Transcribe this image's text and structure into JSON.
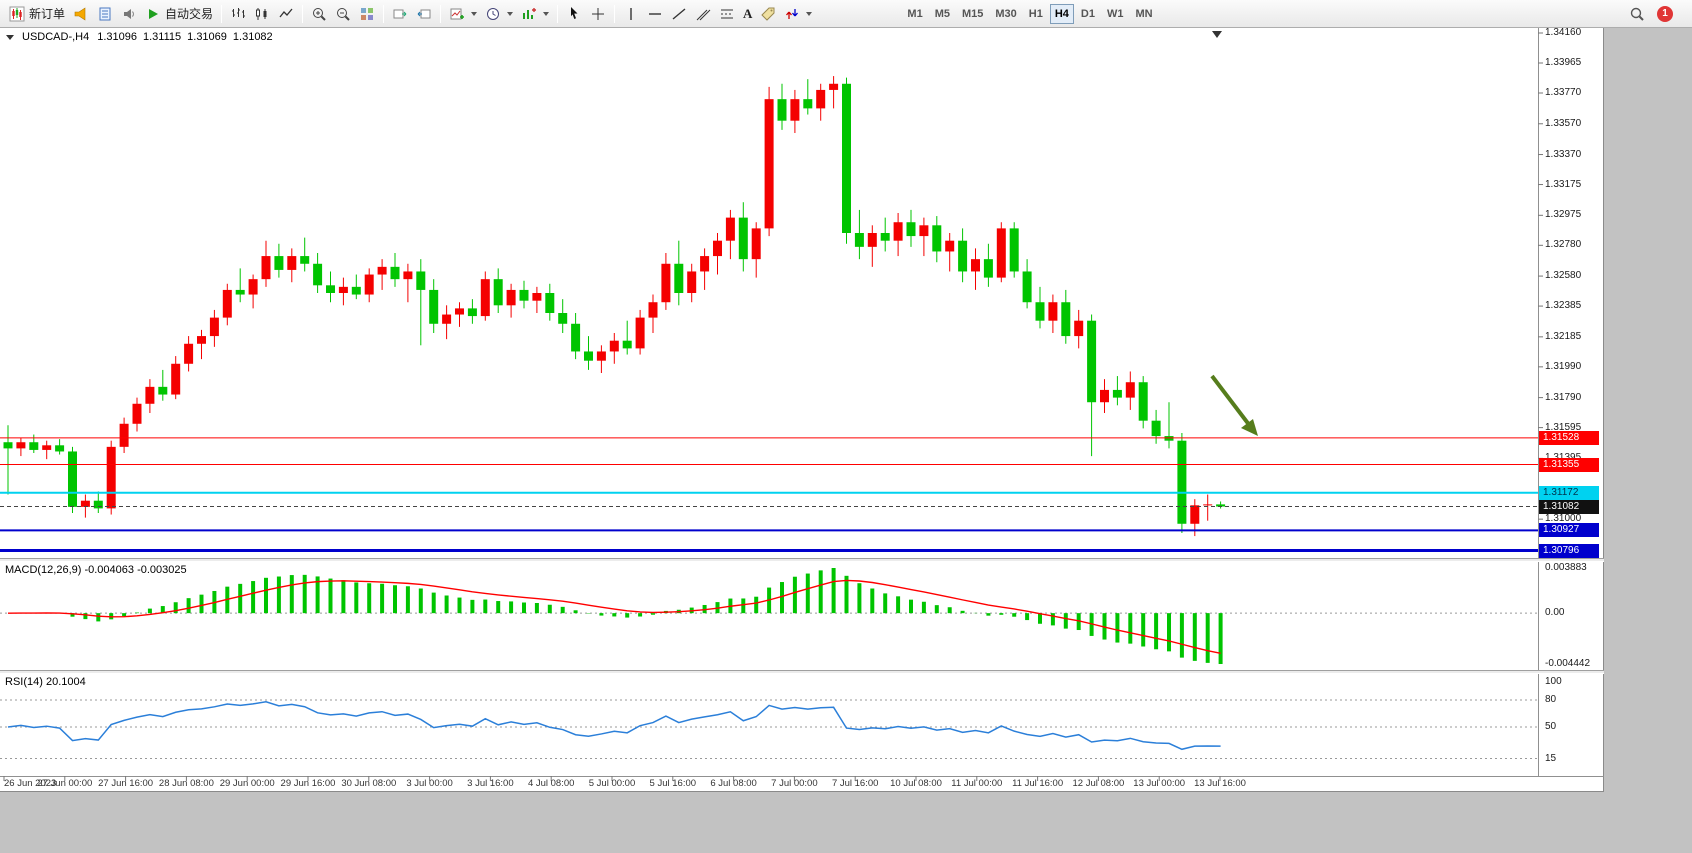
{
  "toolbar": {
    "new_order_label": "新订单",
    "auto_trading_label": "自动交易",
    "text_tool_label": "A",
    "timeframes": [
      "M1",
      "M5",
      "M15",
      "M30",
      "H1",
      "H4",
      "D1",
      "W1",
      "MN"
    ],
    "active_timeframe": "H4",
    "notification_count": "1"
  },
  "chart": {
    "symbol_period": "USDCAD-,H4",
    "ohlc": {
      "open": "1.31096",
      "high": "1.31115",
      "low": "1.31069",
      "close": "1.31082"
    },
    "price_scale": [
      "1.34160",
      "1.33965",
      "1.33770",
      "1.33570",
      "1.33370",
      "1.33175",
      "1.32975",
      "1.32780",
      "1.32580",
      "1.32385",
      "1.32185",
      "1.31990",
      "1.31790",
      "1.31595",
      "1.31395",
      "1.31000"
    ],
    "price_lines": [
      {
        "price": 1.31528,
        "label": "1.31528",
        "color": "#ff0000",
        "width": 1
      },
      {
        "price": 1.31355,
        "label": "1.31355",
        "color": "#ff0000",
        "width": 1
      },
      {
        "price": 1.31172,
        "label": "1.31172",
        "color": "#00d2f0",
        "width": 2,
        "text_color": "#00334d"
      },
      {
        "price": 1.30927,
        "label": "1.30927",
        "color": "#0000cd",
        "width": 2
      },
      {
        "price": 1.30796,
        "label": "1.30796",
        "color": "#0000cd",
        "width": 3
      }
    ],
    "current_price": {
      "value": 1.31082,
      "label": "1.31082",
      "bg": "#111111"
    },
    "time_axis": [
      "26 Jun 2023",
      "27 Jun 00:00",
      "27 Jun 16:00",
      "28 Jun 08:00",
      "29 Jun 00:00",
      "29 Jun 16:00",
      "30 Jun 08:00",
      "3 Jul 00:00",
      "3 Jul 16:00",
      "4 Jul 08:00",
      "5 Jul 00:00",
      "5 Jul 16:00",
      "6 Jul 08:00",
      "7 Jul 00:00",
      "7 Jul 16:00",
      "10 Jul 08:00",
      "11 Jul 00:00",
      "11 Jul 16:00",
      "12 Jul 08:00",
      "13 Jul 00:00",
      "13 Jul 16:00"
    ]
  },
  "macd": {
    "header": "MACD(12,26,9) -0.004063 -0.003025",
    "scale": [
      "0.003883",
      "0.00",
      "-0.004442"
    ],
    "histogram_color": "#00c400",
    "signal_color": "#ff0000"
  },
  "rsi": {
    "header": "RSI(14) 20.1004",
    "scale": [
      "100",
      "80",
      "50",
      "15"
    ],
    "levels": [
      80,
      50,
      15
    ],
    "line_color": "#2b7fd9"
  },
  "annotation": {
    "type": "arrow-down-right",
    "color": "#567d1c"
  },
  "chart_data": {
    "type": "candlestick",
    "symbol": "USDCAD",
    "period": "H4",
    "up_color": "#f40000",
    "down_color": "#00c400",
    "price_range": [
      1.3076,
      1.3418
    ],
    "indicators": [
      {
        "name": "MACD",
        "params": [
          12,
          26,
          9
        ],
        "values_shown": [
          -0.004063,
          -0.003025
        ]
      },
      {
        "name": "RSI",
        "params": [
          14
        ],
        "value_shown": 20.1004
      }
    ],
    "candles": [
      [
        1.315,
        1.3161,
        1.3116,
        1.3146
      ],
      [
        1.3146,
        1.3153,
        1.3141,
        1.315
      ],
      [
        1.315,
        1.3155,
        1.3143,
        1.3145
      ],
      [
        1.3145,
        1.3151,
        1.3139,
        1.3148
      ],
      [
        1.3148,
        1.3152,
        1.3142,
        1.3144
      ],
      [
        1.3144,
        1.3147,
        1.3104,
        1.3108
      ],
      [
        1.3108,
        1.3116,
        1.3101,
        1.3112
      ],
      [
        1.3112,
        1.3118,
        1.3104,
        1.3107
      ],
      [
        1.3107,
        1.3151,
        1.3103,
        1.3147
      ],
      [
        1.3147,
        1.3166,
        1.3143,
        1.3162
      ],
      [
        1.3162,
        1.3179,
        1.3157,
        1.3175
      ],
      [
        1.3175,
        1.3191,
        1.3169,
        1.3186
      ],
      [
        1.3186,
        1.3197,
        1.3177,
        1.3181
      ],
      [
        1.3181,
        1.3206,
        1.3178,
        1.3201
      ],
      [
        1.3201,
        1.3219,
        1.3196,
        1.3214
      ],
      [
        1.3214,
        1.3223,
        1.3204,
        1.3219
      ],
      [
        1.3219,
        1.3236,
        1.3212,
        1.3231
      ],
      [
        1.3231,
        1.3253,
        1.3226,
        1.3249
      ],
      [
        1.3249,
        1.3263,
        1.3241,
        1.3246
      ],
      [
        1.3246,
        1.3259,
        1.3237,
        1.3256
      ],
      [
        1.3256,
        1.3281,
        1.3251,
        1.3271
      ],
      [
        1.3271,
        1.3279,
        1.3257,
        1.3262
      ],
      [
        1.3262,
        1.3276,
        1.3254,
        1.3271
      ],
      [
        1.3271,
        1.3283,
        1.3261,
        1.3266
      ],
      [
        1.3266,
        1.3273,
        1.3247,
        1.3252
      ],
      [
        1.3252,
        1.3261,
        1.3241,
        1.3247
      ],
      [
        1.3247,
        1.3257,
        1.3239,
        1.3251
      ],
      [
        1.3251,
        1.3259,
        1.3243,
        1.3246
      ],
      [
        1.3246,
        1.3263,
        1.3241,
        1.3259
      ],
      [
        1.3259,
        1.3269,
        1.3249,
        1.3264
      ],
      [
        1.3264,
        1.3273,
        1.3251,
        1.3256
      ],
      [
        1.3256,
        1.3266,
        1.3241,
        1.3261
      ],
      [
        1.3261,
        1.3269,
        1.3213,
        1.3249
      ],
      [
        1.3249,
        1.3256,
        1.3221,
        1.3227
      ],
      [
        1.3227,
        1.3239,
        1.3217,
        1.3233
      ],
      [
        1.3233,
        1.3241,
        1.3225,
        1.3237
      ],
      [
        1.3237,
        1.3243,
        1.3227,
        1.3232
      ],
      [
        1.3232,
        1.3261,
        1.3229,
        1.3256
      ],
      [
        1.3256,
        1.3263,
        1.3234,
        1.3239
      ],
      [
        1.3239,
        1.3253,
        1.3231,
        1.3249
      ],
      [
        1.3249,
        1.3255,
        1.3237,
        1.3242
      ],
      [
        1.3242,
        1.3251,
        1.3234,
        1.3247
      ],
      [
        1.3247,
        1.3253,
        1.3229,
        1.3234
      ],
      [
        1.3234,
        1.3243,
        1.3221,
        1.3227
      ],
      [
        1.3227,
        1.3234,
        1.3204,
        1.3209
      ],
      [
        1.3209,
        1.3219,
        1.3197,
        1.3203
      ],
      [
        1.3203,
        1.3213,
        1.3195,
        1.3209
      ],
      [
        1.3209,
        1.3221,
        1.3201,
        1.3216
      ],
      [
        1.3216,
        1.3229,
        1.3207,
        1.3211
      ],
      [
        1.3211,
        1.3236,
        1.3207,
        1.3231
      ],
      [
        1.3231,
        1.3246,
        1.3221,
        1.3241
      ],
      [
        1.3241,
        1.3273,
        1.3236,
        1.3266
      ],
      [
        1.3266,
        1.3281,
        1.3239,
        1.3247
      ],
      [
        1.3247,
        1.3266,
        1.3241,
        1.3261
      ],
      [
        1.3261,
        1.3276,
        1.3249,
        1.3271
      ],
      [
        1.3271,
        1.3286,
        1.3259,
        1.3281
      ],
      [
        1.3281,
        1.3301,
        1.3269,
        1.3296
      ],
      [
        1.3296,
        1.3306,
        1.3261,
        1.3269
      ],
      [
        1.3269,
        1.3293,
        1.3257,
        1.3289
      ],
      [
        1.3289,
        1.3381,
        1.3284,
        1.3373
      ],
      [
        1.3373,
        1.3383,
        1.3353,
        1.3359
      ],
      [
        1.3359,
        1.3379,
        1.3351,
        1.3373
      ],
      [
        1.3373,
        1.3386,
        1.3363,
        1.3367
      ],
      [
        1.3367,
        1.3383,
        1.3359,
        1.3379
      ],
      [
        1.3379,
        1.3388,
        1.3367,
        1.3383
      ],
      [
        1.3383,
        1.3387,
        1.3279,
        1.3286
      ],
      [
        1.3286,
        1.3301,
        1.3269,
        1.3277
      ],
      [
        1.3277,
        1.3291,
        1.3264,
        1.3286
      ],
      [
        1.3286,
        1.3296,
        1.3274,
        1.3281
      ],
      [
        1.3281,
        1.3299,
        1.3271,
        1.3293
      ],
      [
        1.3293,
        1.3301,
        1.3277,
        1.3284
      ],
      [
        1.3284,
        1.3296,
        1.3271,
        1.3291
      ],
      [
        1.3291,
        1.3297,
        1.3267,
        1.3274
      ],
      [
        1.3274,
        1.3286,
        1.3261,
        1.3281
      ],
      [
        1.3281,
        1.3289,
        1.3254,
        1.3261
      ],
      [
        1.3261,
        1.3276,
        1.3249,
        1.3269
      ],
      [
        1.3269,
        1.3279,
        1.3251,
        1.3257
      ],
      [
        1.3257,
        1.3293,
        1.3254,
        1.3289
      ],
      [
        1.3289,
        1.3293,
        1.3257,
        1.3261
      ],
      [
        1.3261,
        1.3269,
        1.3237,
        1.3241
      ],
      [
        1.3241,
        1.3251,
        1.3224,
        1.3229
      ],
      [
        1.3229,
        1.3246,
        1.3221,
        1.3241
      ],
      [
        1.3241,
        1.3249,
        1.3214,
        1.3219
      ],
      [
        1.3219,
        1.3236,
        1.3211,
        1.3229
      ],
      [
        1.3229,
        1.3233,
        1.3141,
        1.3176
      ],
      [
        1.3176,
        1.3191,
        1.3169,
        1.3184
      ],
      [
        1.3184,
        1.3193,
        1.3174,
        1.3179
      ],
      [
        1.3179,
        1.3196,
        1.3171,
        1.3189
      ],
      [
        1.3189,
        1.3193,
        1.3159,
        1.3164
      ],
      [
        1.3164,
        1.3171,
        1.3149,
        1.3154
      ],
      [
        1.3154,
        1.3176,
        1.3146,
        1.3151
      ],
      [
        1.3151,
        1.3156,
        1.3091,
        1.3097
      ],
      [
        1.3097,
        1.3113,
        1.3089,
        1.3109
      ],
      [
        1.3109,
        1.3116,
        1.3099,
        1.31096
      ],
      [
        1.31096,
        1.31115,
        1.31069,
        1.31082
      ]
    ]
  }
}
